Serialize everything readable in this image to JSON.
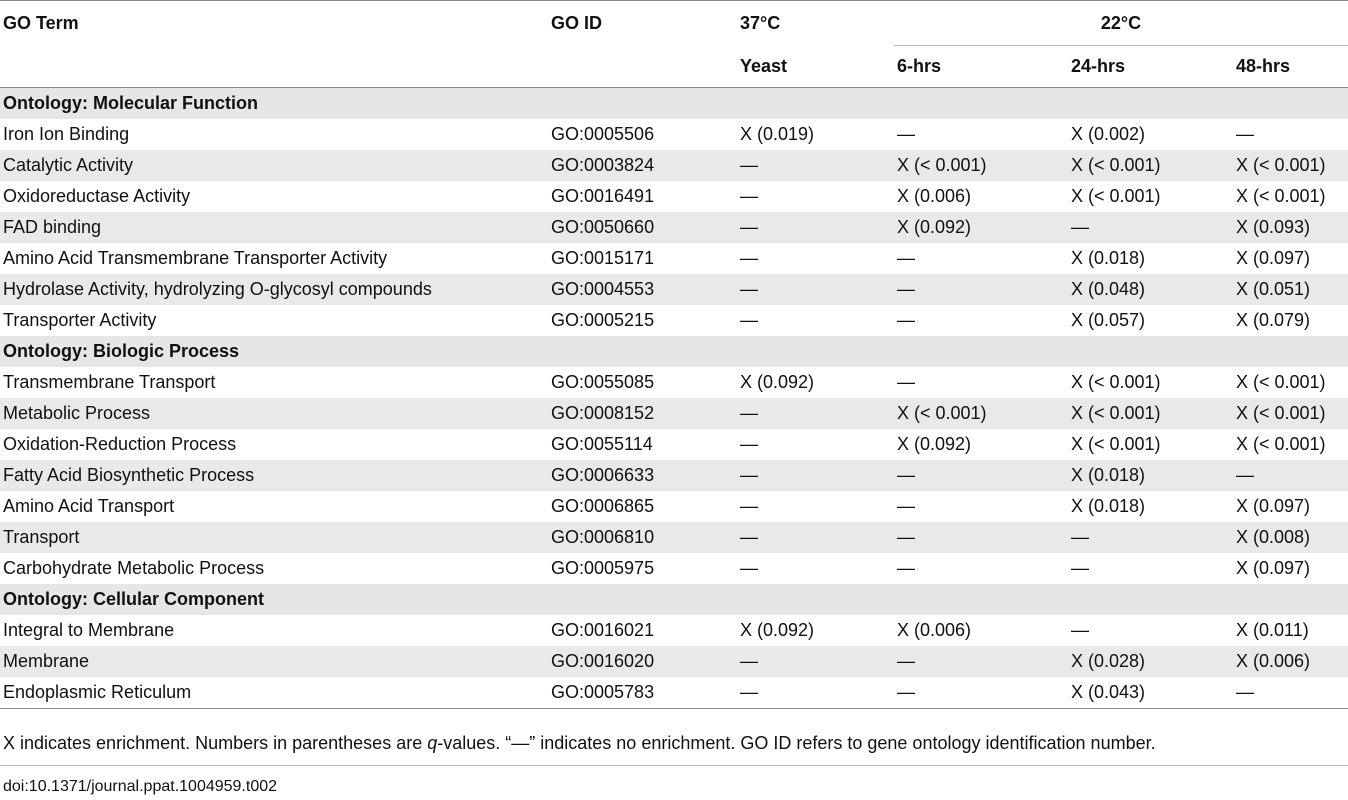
{
  "headers": {
    "go_term": "GO Term",
    "go_id": "GO ID",
    "temp37": "37°C",
    "temp22": "22°C",
    "yeast": "Yeast",
    "hrs6": "6-hrs",
    "hrs24": "24-hrs",
    "hrs48": "48-hrs"
  },
  "sections": [
    {
      "title": "Ontology: Molecular Function",
      "rows": [
        {
          "term": "Iron Ion Binding",
          "id": "GO:0005506",
          "yeast": "X (0.019)",
          "h6": "—",
          "h24": "X (0.002)",
          "h48": "—"
        },
        {
          "term": "Catalytic Activity",
          "id": "GO:0003824",
          "yeast": "—",
          "h6": "X (< 0.001)",
          "h24": "X (< 0.001)",
          "h48": "X (< 0.001)"
        },
        {
          "term": "Oxidoreductase Activity",
          "id": "GO:0016491",
          "yeast": "—",
          "h6": "X (0.006)",
          "h24": "X (< 0.001)",
          "h48": "X (< 0.001)"
        },
        {
          "term": "FAD binding",
          "id": "GO:0050660",
          "yeast": "—",
          "h6": "X (0.092)",
          "h24": "—",
          "h48": "X (0.093)"
        },
        {
          "term": "Amino Acid Transmembrane Transporter Activity",
          "id": "GO:0015171",
          "yeast": "—",
          "h6": "—",
          "h24": "X (0.018)",
          "h48": "X (0.097)"
        },
        {
          "term": "Hydrolase Activity, hydrolyzing O-glycosyl compounds",
          "id": "GO:0004553",
          "yeast": "—",
          "h6": "—",
          "h24": "X (0.048)",
          "h48": "X (0.051)"
        },
        {
          "term": "Transporter Activity",
          "id": "GO:0005215",
          "yeast": "—",
          "h6": "—",
          "h24": "X (0.057)",
          "h48": "X (0.079)"
        }
      ]
    },
    {
      "title": "Ontology: Biologic Process",
      "rows": [
        {
          "term": "Transmembrane Transport",
          "id": "GO:0055085",
          "yeast": "X (0.092)",
          "h6": "—",
          "h24": "X (< 0.001)",
          "h48": "X (< 0.001)"
        },
        {
          "term": "Metabolic Process",
          "id": "GO:0008152",
          "yeast": "—",
          "h6": "X (< 0.001)",
          "h24": "X (< 0.001)",
          "h48": "X (< 0.001)"
        },
        {
          "term": "Oxidation-Reduction Process",
          "id": "GO:0055114",
          "yeast": "—",
          "h6": "X (0.092)",
          "h24": "X (< 0.001)",
          "h48": "X (< 0.001)"
        },
        {
          "term": "Fatty Acid Biosynthetic Process",
          "id": "GO:0006633",
          "yeast": "—",
          "h6": "—",
          "h24": "X (0.018)",
          "h48": "—"
        },
        {
          "term": "Amino Acid Transport",
          "id": "GO:0006865",
          "yeast": "—",
          "h6": "—",
          "h24": "X (0.018)",
          "h48": "X (0.097)"
        },
        {
          "term": "Transport",
          "id": "GO:0006810",
          "yeast": "—",
          "h6": "—",
          "h24": "—",
          "h48": "X (0.008)"
        },
        {
          "term": "Carbohydrate Metabolic Process",
          "id": "GO:0005975",
          "yeast": "—",
          "h6": "—",
          "h24": "—",
          "h48": "X (0.097)"
        }
      ]
    },
    {
      "title": "Ontology: Cellular Component",
      "rows": [
        {
          "term": "Integral to Membrane",
          "id": "GO:0016021",
          "yeast": "X (0.092)",
          "h6": "X (0.006)",
          "h24": "—",
          "h48": "X (0.011)"
        },
        {
          "term": "Membrane",
          "id": "GO:0016020",
          "yeast": "—",
          "h6": "—",
          "h24": "X (0.028)",
          "h48": "X (0.006)"
        },
        {
          "term": "Endoplasmic Reticulum",
          "id": "GO:0005783",
          "yeast": "—",
          "h6": "—",
          "h24": "X (0.043)",
          "h48": "—"
        }
      ]
    }
  ],
  "footnote": {
    "part1": "X indicates enrichment. Numbers in parentheses are ",
    "q": "q",
    "part2": "-values. “—” indicates no enrichment. GO ID refers to gene ontology identification number."
  },
  "doi": "doi:10.1371/journal.ppat.1004959.t002",
  "colors": {
    "row_shade": "#e9e9e9",
    "section_shade": "#e6e6e6",
    "rule": "#8a8a8a"
  }
}
